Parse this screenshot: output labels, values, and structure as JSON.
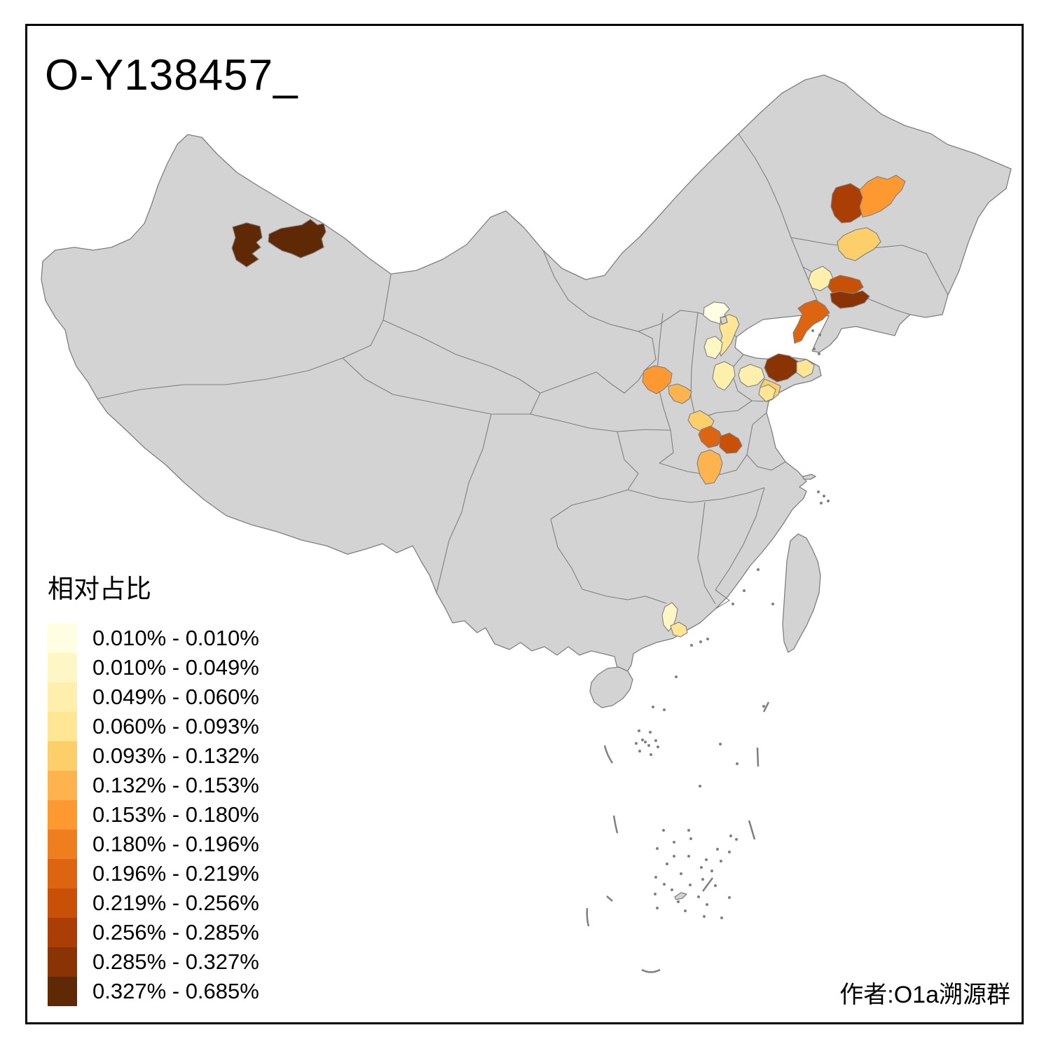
{
  "title": "O-Y138457_",
  "attribution": "作者:O1a溯源群",
  "legend": {
    "title": "相对占比",
    "items": [
      {
        "label": "0.010% - 0.010%",
        "color": "#FFFDE2"
      },
      {
        "label": "0.010% - 0.049%",
        "color": "#FFF6C6"
      },
      {
        "label": "0.049% - 0.060%",
        "color": "#FEF0AC"
      },
      {
        "label": "0.060% - 0.093%",
        "color": "#FEE695"
      },
      {
        "label": "0.093% - 0.132%",
        "color": "#FDCF6B"
      },
      {
        "label": "0.132% - 0.153%",
        "color": "#FDB44E"
      },
      {
        "label": "0.153% - 0.180%",
        "color": "#FD9930"
      },
      {
        "label": "0.180% - 0.196%",
        "color": "#EF7E1E"
      },
      {
        "label": "0.196% - 0.219%",
        "color": "#DD6512"
      },
      {
        "label": "0.219% - 0.256%",
        "color": "#C95007"
      },
      {
        "label": "0.256% - 0.285%",
        "color": "#AA3E05"
      },
      {
        "label": "0.285% - 0.327%",
        "color": "#8A3304"
      },
      {
        "label": "0.327% - 0.685%",
        "color": "#5F2906"
      }
    ]
  },
  "map": {
    "base_fill": "#D3D3D3",
    "border_color": "#7F7F7F",
    "sea_color": "#FFFFFF",
    "frame_color": "#000000",
    "regions": [
      {
        "id": "xinjiang-west",
        "class": 13
      },
      {
        "id": "xinjiang-east",
        "class": 13
      },
      {
        "id": "heilongjiang-west",
        "class": 11
      },
      {
        "id": "heilongjiang-central",
        "class": 7
      },
      {
        "id": "jilin-west",
        "class": 5
      },
      {
        "id": "liaoning-north",
        "class": 3
      },
      {
        "id": "liaoning-shenyang",
        "class": 10
      },
      {
        "id": "liaoning-east",
        "class": 12
      },
      {
        "id": "liaoning-dalian",
        "class": 9
      },
      {
        "id": "beijing",
        "class": 1
      },
      {
        "id": "hebei-langfang",
        "class": 4
      },
      {
        "id": "hebei-baoding",
        "class": 2
      },
      {
        "id": "hebei-shijiazhuang",
        "class": 3
      },
      {
        "id": "shandong-jinan",
        "class": 3
      },
      {
        "id": "shandong-weifang",
        "class": 12
      },
      {
        "id": "shandong-yantai",
        "class": 4
      },
      {
        "id": "shandong-qingdao",
        "class": 5
      },
      {
        "id": "shandong-linyi",
        "class": 4
      },
      {
        "id": "shaanxi-yulin",
        "class": 7
      },
      {
        "id": "shanxi-lvliang",
        "class": 6
      },
      {
        "id": "shanxi-yuncheng",
        "class": 5
      },
      {
        "id": "henan-luoyang",
        "class": 9
      },
      {
        "id": "henan-zhengzhou",
        "class": 10
      },
      {
        "id": "henan-nanyang",
        "class": 6
      },
      {
        "id": "guangdong-qingyuan",
        "class": 2
      },
      {
        "id": "guangdong-guangzhou",
        "class": 4
      }
    ]
  }
}
